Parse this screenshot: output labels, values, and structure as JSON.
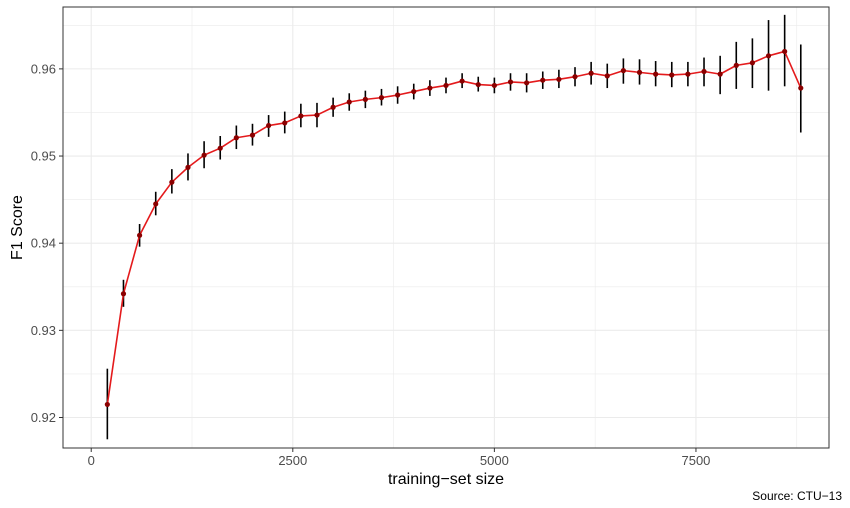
{
  "chart_data": {
    "type": "line",
    "title": "",
    "xlabel": "training−set size",
    "ylabel": "F1 Score",
    "caption": "Source: CTU−13",
    "xlim": [
      -350,
      9150
    ],
    "ylim": [
      0.9165,
      0.9671
    ],
    "x_ticks": [
      0,
      2500,
      5000,
      7500
    ],
    "x_tick_labels": [
      "0",
      "2500",
      "5000",
      "7500"
    ],
    "y_ticks": [
      0.92,
      0.93,
      0.94,
      0.95,
      0.96
    ],
    "y_tick_labels": [
      "0.92",
      "0.93",
      "0.94",
      "0.95",
      "0.96"
    ],
    "grid": true,
    "colors": {
      "line": "#e41a1c",
      "point": "#8b0000",
      "errorbar": "#000000",
      "grid": "#ebebeb",
      "panel_border": "#333333"
    },
    "series": [
      {
        "x": [
          200,
          400,
          600,
          800,
          1000,
          1200,
          1400,
          1600,
          1800,
          2000,
          2200,
          2400,
          2600,
          2800,
          3000,
          3200,
          3400,
          3600,
          3800,
          4000,
          4200,
          4400,
          4600,
          4800,
          5000,
          5200,
          5400,
          5600,
          5800,
          6000,
          6200,
          6400,
          6600,
          6800,
          7000,
          7200,
          7400,
          7600,
          7800,
          8000,
          8200,
          8400,
          8600,
          8800
        ],
        "y": [
          0.9215,
          0.9342,
          0.9409,
          0.9445,
          0.947,
          0.9487,
          0.9501,
          0.9509,
          0.9521,
          0.9524,
          0.9535,
          0.9538,
          0.9546,
          0.9547,
          0.9556,
          0.9562,
          0.9565,
          0.9567,
          0.957,
          0.9574,
          0.9578,
          0.9581,
          0.9586,
          0.9582,
          0.9581,
          0.9585,
          0.9584,
          0.9587,
          0.9588,
          0.9591,
          0.9595,
          0.9592,
          0.9598,
          0.9596,
          0.9594,
          0.9593,
          0.9594,
          0.9597,
          0.9594,
          0.9604,
          0.9607,
          0.9615,
          0.962,
          0.9578
        ],
        "err_low": [
          0.9175,
          0.9327,
          0.9396,
          0.9432,
          0.9457,
          0.9472,
          0.9486,
          0.9496,
          0.9508,
          0.9512,
          0.9522,
          0.9526,
          0.9533,
          0.9533,
          0.9545,
          0.9552,
          0.9555,
          0.9558,
          0.956,
          0.9565,
          0.9569,
          0.9572,
          0.9578,
          0.9574,
          0.9572,
          0.9575,
          0.9573,
          0.9577,
          0.9578,
          0.958,
          0.9582,
          0.9578,
          0.9583,
          0.9582,
          0.958,
          0.9579,
          0.958,
          0.958,
          0.9571,
          0.9577,
          0.9578,
          0.9575,
          0.958,
          0.9527
        ],
        "err_high": [
          0.9256,
          0.9358,
          0.9422,
          0.9459,
          0.9485,
          0.9503,
          0.9517,
          0.9523,
          0.9535,
          0.9537,
          0.9547,
          0.9551,
          0.956,
          0.9561,
          0.9567,
          0.9572,
          0.9575,
          0.9577,
          0.958,
          0.9583,
          0.9587,
          0.959,
          0.9595,
          0.9591,
          0.959,
          0.9595,
          0.9595,
          0.9597,
          0.9599,
          0.9602,
          0.9608,
          0.9606,
          0.9612,
          0.9611,
          0.9609,
          0.9608,
          0.9608,
          0.9613,
          0.9615,
          0.9631,
          0.9635,
          0.9656,
          0.9662,
          0.9628
        ]
      }
    ]
  }
}
